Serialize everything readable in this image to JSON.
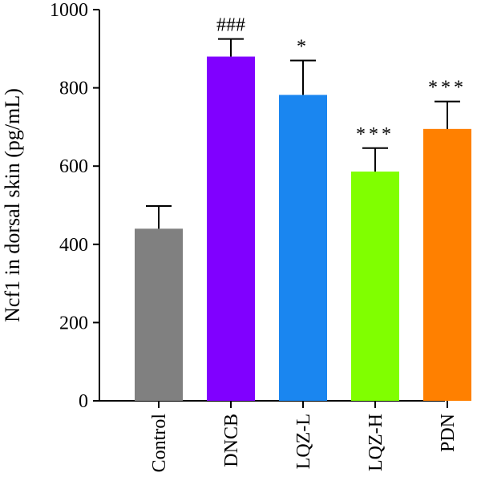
{
  "chart_data": {
    "type": "bar",
    "ylabel": "Ncf1 in dorsal skin (pg/mL)",
    "xlabel": "",
    "ylim": [
      0,
      1000
    ],
    "yticks": [
      "0",
      "200",
      "400",
      "600",
      "800",
      "1000"
    ],
    "grid": false,
    "categories": [
      "Control",
      "DNCB",
      "LQZ-L",
      "LQZ-H",
      "PDN"
    ],
    "values": [
      440,
      880,
      782,
      586,
      695
    ],
    "errors": [
      58,
      45,
      88,
      60,
      70
    ],
    "significance": [
      "",
      "###",
      "*",
      "***",
      "***"
    ],
    "colors": [
      "#808080",
      "#8000ff",
      "#1a86f0",
      "#80ff00",
      "#ff8000"
    ]
  }
}
